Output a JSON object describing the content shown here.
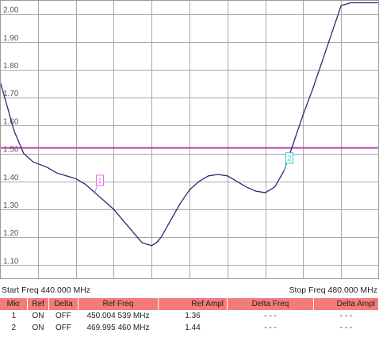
{
  "chart_data": {
    "type": "line",
    "x_unit": "MHz",
    "xlim": [
      440,
      480
    ],
    "ylim": [
      1.05,
      2.05
    ],
    "yticks": [
      "2.00",
      "1.90",
      "1.80",
      "1.70",
      "1.60",
      "1.50",
      "1.40",
      "1.30",
      "1.20",
      "1.10"
    ],
    "grid": true,
    "reference_line": {
      "value": 1.52,
      "color": "#b23cb0"
    },
    "trace_color": "#2a2a6e",
    "series": [
      {
        "x": [
          440.0,
          440.5,
          441.5,
          442.5,
          443.5,
          445.0,
          446.0,
          447.0,
          448.0,
          449.0,
          450.0,
          451.0,
          452.0,
          453.0,
          454.0,
          455.0,
          456.0,
          456.5,
          457.0,
          458.0,
          459.0,
          460.0,
          461.0,
          462.0,
          463.0,
          464.0,
          465.0,
          466.0,
          467.0,
          468.0,
          469.0,
          470.0,
          471.0,
          472.0,
          473.0,
          474.0,
          475.0,
          476.0,
          477.0,
          478.0,
          479.0,
          480.0
        ],
        "y": [
          1.76,
          1.7,
          1.58,
          1.5,
          1.47,
          1.45,
          1.43,
          1.42,
          1.41,
          1.39,
          1.36,
          1.33,
          1.3,
          1.26,
          1.22,
          1.18,
          1.17,
          1.18,
          1.2,
          1.26,
          1.32,
          1.37,
          1.4,
          1.42,
          1.425,
          1.42,
          1.4,
          1.38,
          1.365,
          1.36,
          1.38,
          1.44,
          1.54,
          1.64,
          1.73,
          1.83,
          1.93,
          2.03,
          2.04,
          2.04,
          2.04,
          2.04
        ]
      }
    ],
    "markers": [
      {
        "label": "1",
        "x": 450.0,
        "y": 1.36,
        "color": "#e070e0"
      },
      {
        "label": "2",
        "x": 470.0,
        "y": 1.44,
        "color": "#30c4d8"
      }
    ]
  },
  "status": {
    "start_freq": "Start Freq 440.000 MHz",
    "stop_freq": "Stop Freq 480.000 MHz"
  },
  "marker_table": {
    "headers": [
      "Mkr",
      "Ref",
      "Delta",
      "Ref Freq",
      "Ref Ampl",
      "Delta Freq",
      "Delta Ampl"
    ],
    "rows": [
      [
        "1",
        "ON",
        "OFF",
        "450.004 539 MHz",
        "1.36",
        "- - -",
        "- - -"
      ],
      [
        "2",
        "ON",
        "OFF",
        "469.995 460 MHz",
        "1.44",
        "- - -",
        "- - -"
      ]
    ]
  }
}
